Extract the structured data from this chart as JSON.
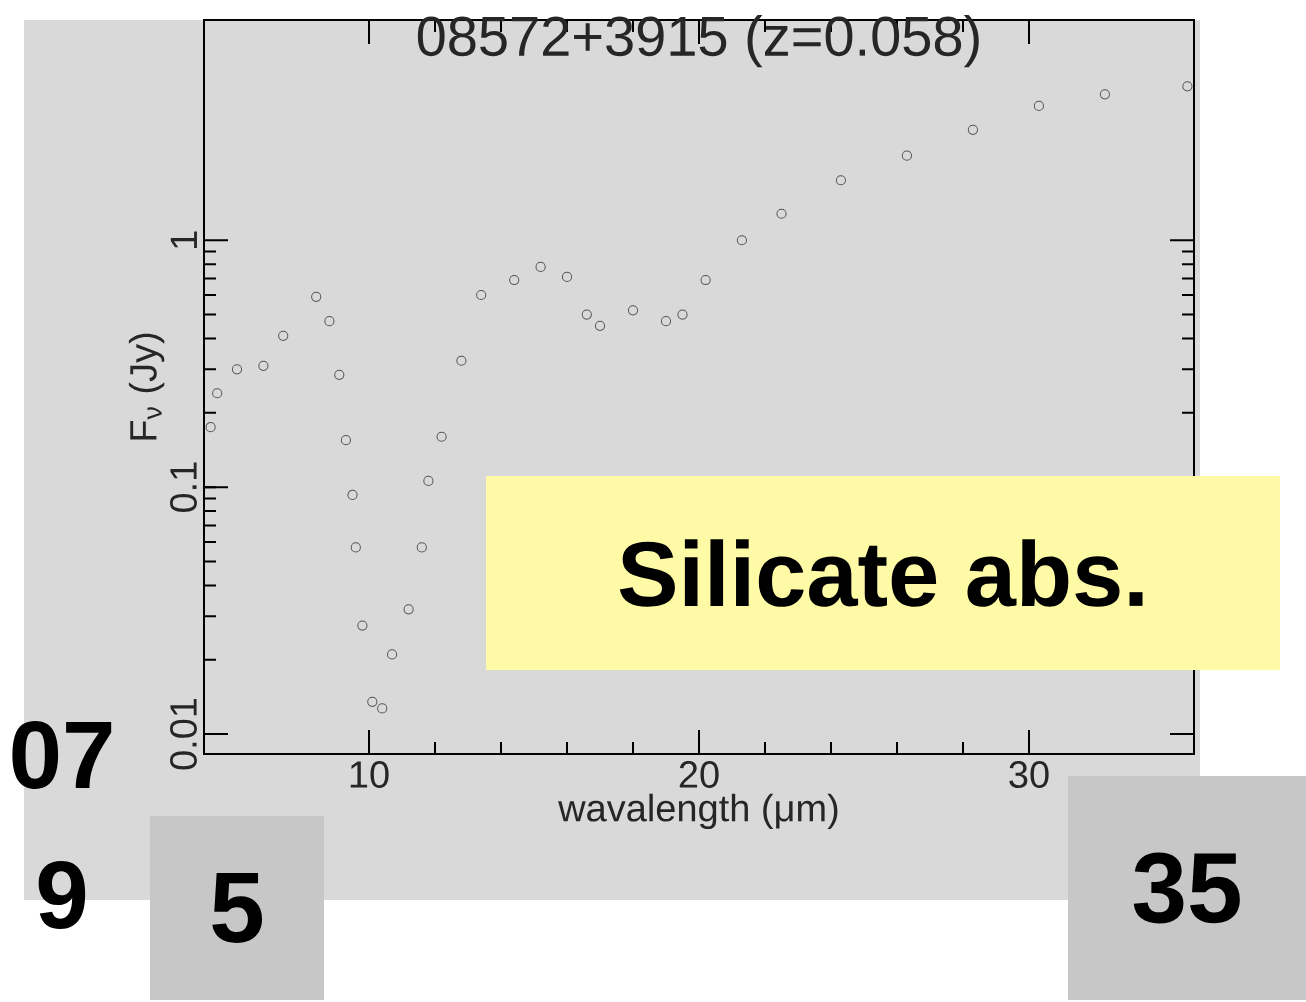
{
  "chart_data": {
    "type": "scatter",
    "title": "08572+3915 (z=0.058)",
    "xlabel": "wavalength (μm)",
    "ylabel": "F$_{ν}$ (Jy)",
    "x": [
      5.2,
      5.4,
      6.0,
      6.8,
      7.4,
      8.4,
      8.8,
      9.1,
      9.3,
      9.5,
      9.6,
      9.8,
      10.1,
      10.4,
      10.7,
      11.2,
      11.6,
      11.8,
      12.2,
      12.8,
      13.4,
      14.4,
      15.2,
      16.0,
      16.6,
      17.0,
      18.0,
      19.0,
      19.5,
      20.2,
      21.3,
      22.5,
      24.3,
      26.3,
      28.3,
      30.3,
      32.3,
      34.8
    ],
    "series": [
      {
        "color": "#555555",
        "values": [
          0.175,
          0.24,
          0.3,
          0.31,
          0.41,
          0.59,
          0.47,
          0.285,
          0.155,
          0.093,
          0.057,
          0.0275,
          0.0135,
          0.0127,
          0.021,
          0.032,
          0.057,
          0.106,
          0.16,
          0.325,
          0.6,
          0.69,
          0.78,
          0.71,
          0.5,
          0.45,
          0.52,
          0.47,
          0.5,
          0.69,
          1.0,
          1.28,
          1.75,
          2.2,
          2.8,
          3.5,
          3.9,
          4.2
        ]
      }
    ],
    "marker": "circle",
    "log": "y",
    "xlim": [
      5,
      35
    ],
    "ylim": [
      0.0083,
      7.8
    ],
    "xticks": [
      10,
      20,
      30
    ],
    "yticks": [
      0.01,
      0.1,
      1
    ],
    "annotations": [
      "Silicate abs.",
      "5",
      "35",
      "07",
      "9"
    ]
  }
}
